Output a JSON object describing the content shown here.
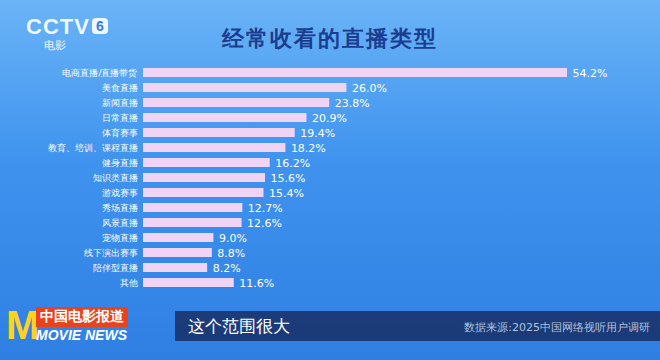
{
  "chart_data": {
    "type": "bar",
    "title": "经常收看的直播类型",
    "orientation": "horizontal",
    "categories": [
      "电商直播/直播带货",
      "美食直播",
      "新闻直播",
      "日常直播",
      "体育赛事",
      "教育、培训、课程直播",
      "健身直播",
      "知识类直播",
      "游戏赛事",
      "秀场直播",
      "风景直播",
      "宠物直播",
      "线下演出赛事",
      "陪伴型直播",
      "其他"
    ],
    "values": [
      54.2,
      26.0,
      23.8,
      20.9,
      19.4,
      18.2,
      16.2,
      15.6,
      15.4,
      12.7,
      12.6,
      9.0,
      8.8,
      8.2,
      11.6
    ],
    "value_labels": [
      "54.2%",
      "26.0%",
      "23.8%",
      "20.9%",
      "19.4%",
      "18.2%",
      "16.2%",
      "15.6%",
      "15.4%",
      "12.7%",
      "12.6%",
      "9.0%",
      "8.8%",
      "8.2%",
      "11.6%"
    ],
    "color": "#efd4f6",
    "data_labels": true,
    "tick_labels": "y",
    "grid": false
  },
  "logo": {
    "name": "CCTV",
    "channel": "6",
    "subtitle": "电影"
  },
  "program": {
    "mark": "M",
    "name": "中国电影报道",
    "english": "MOVIE NEWS"
  },
  "caption": "这个范围很大",
  "source": "数据来源:2025中国网络视听用户调研"
}
